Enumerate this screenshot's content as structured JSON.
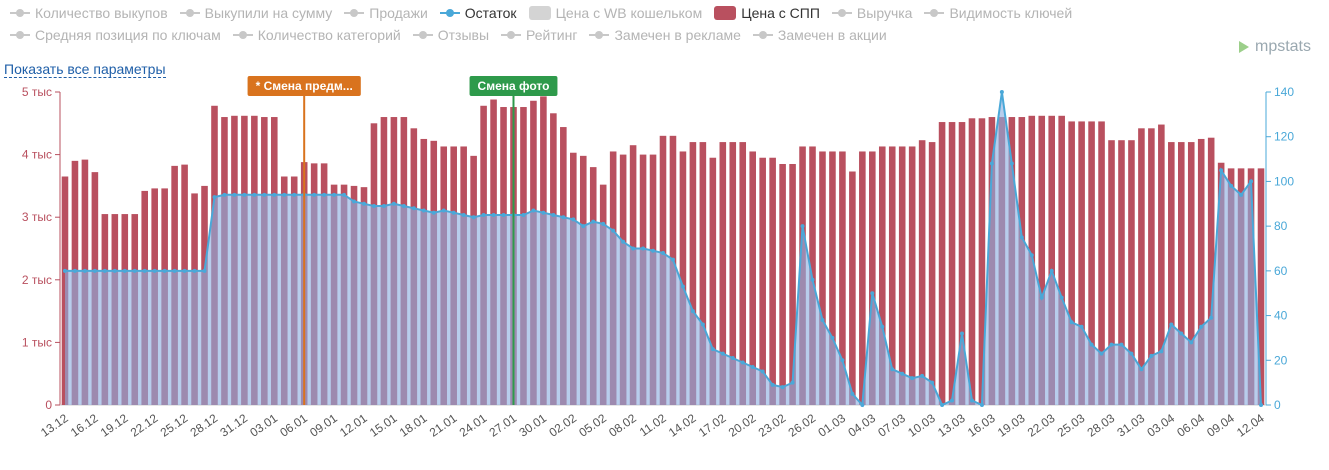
{
  "chart_data": {
    "type": "bar-line",
    "legend": [
      {
        "label": "Количество выкупов",
        "marker": "line",
        "color": "#c8c8c8",
        "enabled": false
      },
      {
        "label": "Выкупили на сумму",
        "marker": "line",
        "color": "#c8c8c8",
        "enabled": false
      },
      {
        "label": "Продажи",
        "marker": "line",
        "color": "#c8c8c8",
        "enabled": false
      },
      {
        "label": "Остаток",
        "marker": "line",
        "color": "#4aa8d8",
        "enabled": true
      },
      {
        "label": "Цена с WB кошельком",
        "marker": "box",
        "color": "#d4d4d4",
        "enabled": false
      },
      {
        "label": "Цена с СПП",
        "marker": "box",
        "color": "#b9505f",
        "enabled": true
      },
      {
        "label": "Выручка",
        "marker": "line",
        "color": "#c8c8c8",
        "enabled": false
      },
      {
        "label": "Видимость ключей",
        "marker": "line",
        "color": "#c8c8c8",
        "enabled": false
      },
      {
        "label": "Средняя позиция по ключам",
        "marker": "line",
        "color": "#c8c8c8",
        "enabled": false
      },
      {
        "label": "Количество категорий",
        "marker": "line",
        "color": "#c8c8c8",
        "enabled": false
      },
      {
        "label": "Отзывы",
        "marker": "line",
        "color": "#c8c8c8",
        "enabled": false
      },
      {
        "label": "Рейтинг",
        "marker": "line",
        "color": "#c8c8c8",
        "enabled": false
      },
      {
        "label": "Замечен в рекламе",
        "marker": "line",
        "color": "#c8c8c8",
        "enabled": false
      },
      {
        "label": "Замечен в акции",
        "marker": "line",
        "color": "#c8c8c8",
        "enabled": false
      }
    ],
    "link_text": "Показать все параметры",
    "brand": "mpstats",
    "categories": [
      "13.12",
      null,
      null,
      "16.12",
      null,
      null,
      "19.12",
      null,
      null,
      "22.12",
      null,
      null,
      "25.12",
      null,
      null,
      "28.12",
      null,
      null,
      "31.12",
      null,
      null,
      "03.01",
      null,
      null,
      "06.01",
      null,
      null,
      "09.01",
      null,
      null,
      "12.01",
      null,
      null,
      "15.01",
      null,
      null,
      "18.01",
      null,
      null,
      "21.01",
      null,
      null,
      "24.01",
      null,
      null,
      "27.01",
      null,
      null,
      "30.01",
      null,
      null,
      "02.02",
      null,
      null,
      "05.02",
      null,
      null,
      "08.02",
      null,
      null,
      "11.02",
      null,
      null,
      "14.02",
      null,
      null,
      "17.02",
      null,
      null,
      "20.02",
      null,
      null,
      "23.02",
      null,
      null,
      "26.02",
      null,
      null,
      "01.03",
      null,
      null,
      "04.03",
      null,
      null,
      "07.03",
      null,
      null,
      "10.03",
      null,
      null,
      "13.03",
      null,
      null,
      "16.03",
      null,
      null,
      "19.03",
      null,
      null,
      "22.03",
      null,
      null,
      "25.03",
      null,
      null,
      "28.03",
      null,
      null,
      "31.03",
      null,
      null,
      "03.04",
      null,
      null,
      "06.04",
      null,
      null,
      "09.04",
      null,
      null,
      "12.04"
    ],
    "series": [
      {
        "kind": "bar",
        "axis": "y",
        "color": "#b9505f",
        "values": [
          3650,
          3900,
          3920,
          3720,
          3050,
          3050,
          3050,
          3050,
          3420,
          3460,
          3460,
          3820,
          3840,
          3380,
          3500,
          4780,
          4600,
          4620,
          4620,
          4620,
          4600,
          4600,
          3650,
          3650,
          3880,
          3860,
          3860,
          3520,
          3520,
          3500,
          3480,
          4500,
          4600,
          4600,
          4600,
          4420,
          4250,
          4220,
          4130,
          4130,
          4130,
          3980,
          4780,
          4880,
          4760,
          4760,
          4760,
          4860,
          4930,
          4660,
          4440,
          4030,
          3980,
          3800,
          3520,
          4050,
          4000,
          4150,
          4000,
          4000,
          4300,
          4300,
          4050,
          4200,
          4200,
          3950,
          4200,
          4200,
          4200,
          4050,
          3950,
          3950,
          3850,
          3850,
          4130,
          4130,
          4050,
          4050,
          4050,
          3730,
          4050,
          4050,
          4130,
          4130,
          4130,
          4130,
          4230,
          4200,
          4520,
          4520,
          4520,
          4580,
          4580,
          4600,
          4600,
          4600,
          4600,
          4620,
          4620,
          4620,
          4620,
          4530,
          4530,
          4530,
          4530,
          4230,
          4230,
          4230,
          4420,
          4420,
          4480,
          4200,
          4200,
          4200,
          4250,
          4270,
          3870,
          3780,
          3780,
          3780,
          3780
        ]
      },
      {
        "kind": "area-line",
        "axis": "y2",
        "color": "#4aa8d8",
        "values": [
          60,
          60,
          60,
          60,
          60,
          60,
          60,
          60,
          60,
          60,
          60,
          60,
          60,
          60,
          60,
          93,
          94,
          94,
          94,
          94,
          94,
          94,
          94,
          94,
          94,
          94,
          94,
          94,
          94,
          91,
          90,
          89,
          89,
          90,
          89,
          88,
          87,
          86,
          87,
          86,
          85,
          84,
          85,
          85,
          85,
          85,
          85,
          87,
          86,
          85,
          84,
          83,
          80,
          82,
          81,
          78,
          73,
          70,
          70,
          69,
          68,
          65,
          53,
          42,
          36,
          25,
          23,
          21,
          19,
          17,
          15,
          9,
          8,
          10,
          80,
          56,
          38,
          30,
          20,
          5,
          0,
          50,
          35,
          16,
          14,
          12,
          13,
          10,
          0,
          2,
          32,
          2,
          0,
          108,
          140,
          108,
          75,
          67,
          48,
          60,
          48,
          37,
          35,
          27,
          23,
          27,
          27,
          23,
          16,
          22,
          24,
          36,
          32,
          28,
          35,
          39,
          105,
          98,
          94,
          100,
          0
        ]
      }
    ],
    "ylim": [
      0,
      5000
    ],
    "yticks": [
      {
        "value": 0,
        "label": "0"
      },
      {
        "value": 1000,
        "label": "1 тыс"
      },
      {
        "value": 2000,
        "label": "2 тыс"
      },
      {
        "value": 3000,
        "label": "3 тыс"
      },
      {
        "value": 4000,
        "label": "4 тыс"
      },
      {
        "value": 5000,
        "label": "5 тыс"
      }
    ],
    "y2lim": [
      0,
      140
    ],
    "y2ticks": [
      0,
      20,
      40,
      60,
      80,
      100,
      120,
      140
    ],
    "annotations": [
      {
        "text": "* Смена предм...",
        "x": "06.01",
        "color": "#d9731e"
      },
      {
        "text": "Смена фото",
        "x": "27.01",
        "color": "#2e9a4b"
      }
    ]
  }
}
